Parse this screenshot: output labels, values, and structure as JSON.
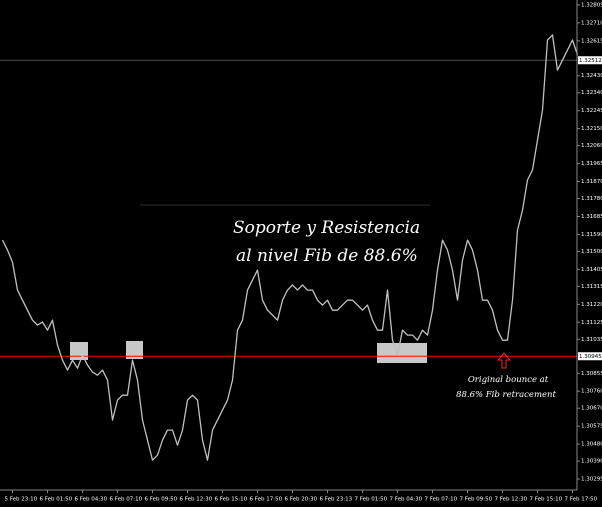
{
  "chart_data": {
    "type": "line",
    "annotations": [
      "Soporte y Resistencia",
      "al nivel Fib de 88.6%",
      "Original bounce at",
      "88.6% Fib retracement"
    ],
    "categories": [
      null,
      null,
      "5 Feb 23:10",
      null,
      null,
      null,
      null,
      null,
      null,
      "6 Feb 01:50",
      null,
      null,
      null,
      null,
      null,
      null,
      "6 Feb 04:30",
      null,
      null,
      null,
      null,
      null,
      null,
      "6 Feb 07:10",
      null,
      null,
      null,
      null,
      null,
      null,
      "6 Feb 09:50",
      null,
      null,
      null,
      null,
      null,
      null,
      "6 Feb 12:30",
      null,
      null,
      null,
      null,
      null,
      null,
      "6 Feb 15:10",
      null,
      null,
      null,
      null,
      null,
      null,
      "6 Feb 17:50",
      null,
      null,
      null,
      null,
      null,
      null,
      "6 Feb 20:30",
      null,
      null,
      null,
      null,
      null,
      null,
      "6 Feb 23:13",
      null,
      null,
      null,
      null,
      null,
      null,
      "7 Feb 01:50",
      null,
      null,
      null,
      null,
      null,
      null,
      "7 Feb 04:30",
      null,
      null,
      null,
      null,
      null,
      null,
      "7 Feb 07:10",
      null,
      null,
      null,
      null,
      null,
      null,
      "7 Feb 09:50",
      null,
      null,
      null,
      null,
      null,
      null,
      "7 Feb 12:30",
      null,
      null,
      null,
      null,
      null,
      null,
      "7 Feb 15:10",
      null,
      null,
      null,
      null,
      null,
      null,
      "7 Feb 17:50",
      null
    ],
    "series": [
      {
        "color": "#c0c0c0",
        "values": [
          1.3156,
          1.31507,
          1.31443,
          1.31295,
          1.31242,
          1.31189,
          1.31136,
          1.3111,
          1.31126,
          1.31083,
          1.31136,
          1.31004,
          1.30924,
          1.30872,
          1.30924,
          1.30882,
          1.30951,
          1.30898,
          1.30861,
          1.30845,
          1.30872,
          1.30819,
          1.30607,
          1.30713,
          1.30739,
          1.30739,
          1.30924,
          1.30819,
          1.30607,
          1.30501,
          1.30395,
          1.30421,
          1.30501,
          1.30554,
          1.30554,
          1.30474,
          1.30554,
          1.30713,
          1.30739,
          1.30713,
          1.30501,
          1.30395,
          1.30554,
          1.30607,
          1.3066,
          1.30713,
          1.30819,
          1.31083,
          1.31136,
          1.31295,
          1.31348,
          1.31401,
          1.31242,
          1.31189,
          1.31163,
          1.31136,
          1.31242,
          1.31295,
          1.31322,
          1.31295,
          1.31322,
          1.31295,
          1.31295,
          1.31242,
          1.31216,
          1.31242,
          1.31189,
          1.31189,
          1.31216,
          1.31242,
          1.31242,
          1.31216,
          1.31189,
          1.31216,
          1.31136,
          1.31083,
          1.31083,
          1.31295,
          1.3103,
          1.30951,
          1.31083,
          1.31057,
          1.31057,
          1.3103,
          1.31083,
          1.31057,
          1.31189,
          1.31401,
          1.3156,
          1.31507,
          1.31401,
          1.31242,
          1.31454,
          1.3156,
          1.31507,
          1.31401,
          1.31242,
          1.31242,
          1.31189,
          1.31083,
          1.3103,
          1.3103,
          1.31242,
          1.31613,
          1.31719,
          1.31878,
          1.31931,
          1.3209,
          1.32248,
          1.32619,
          1.32646,
          1.3246,
          1.32513,
          1.32566,
          1.32619,
          1.3254
        ]
      }
    ],
    "ylim": [
      1.30237,
      1.32831
    ],
    "yticks": [
      {
        "value": 1.32805,
        "label": "1.32805"
      },
      {
        "value": 1.3271,
        "label": "1.32710"
      },
      {
        "value": 1.32615,
        "label": "1.32615"
      },
      {
        "value": 1.3243,
        "label": "1.32430"
      },
      {
        "value": 1.3234,
        "label": "1.32340"
      },
      {
        "value": 1.32245,
        "label": "1.32245"
      },
      {
        "value": 1.3215,
        "label": "1.32150"
      },
      {
        "value": 1.3206,
        "label": "1.32060"
      },
      {
        "value": 1.31965,
        "label": "1.31965"
      },
      {
        "value": 1.3187,
        "label": "1.31870"
      },
      {
        "value": 1.3178,
        "label": "1.31780"
      },
      {
        "value": 1.31685,
        "label": "1.31685"
      },
      {
        "value": 1.3159,
        "label": "1.31590"
      },
      {
        "value": 1.315,
        "label": "1.31500"
      },
      {
        "value": 1.31405,
        "label": "1.31405"
      },
      {
        "value": 1.31315,
        "label": "1.31315"
      },
      {
        "value": 1.3122,
        "label": "1.31220"
      },
      {
        "value": 1.31125,
        "label": "1.31125"
      },
      {
        "value": 1.31035,
        "label": "1.31035"
      },
      {
        "value": 1.30855,
        "label": "1.30855"
      },
      {
        "value": 1.3076,
        "label": "1.30760"
      },
      {
        "value": 1.3067,
        "label": "1.30670"
      },
      {
        "value": 1.30575,
        "label": "1.30575"
      },
      {
        "value": 1.3048,
        "label": "1.30480"
      },
      {
        "value": 1.3039,
        "label": "1.30390"
      },
      {
        "value": 1.30295,
        "label": "1.30295"
      }
    ],
    "levels": [
      {
        "value": 1.30945,
        "label": "1.30945",
        "color": "#ff0000"
      },
      {
        "value": 1.32512,
        "label": "1.32512",
        "color": "#4a4a4a"
      }
    ]
  }
}
